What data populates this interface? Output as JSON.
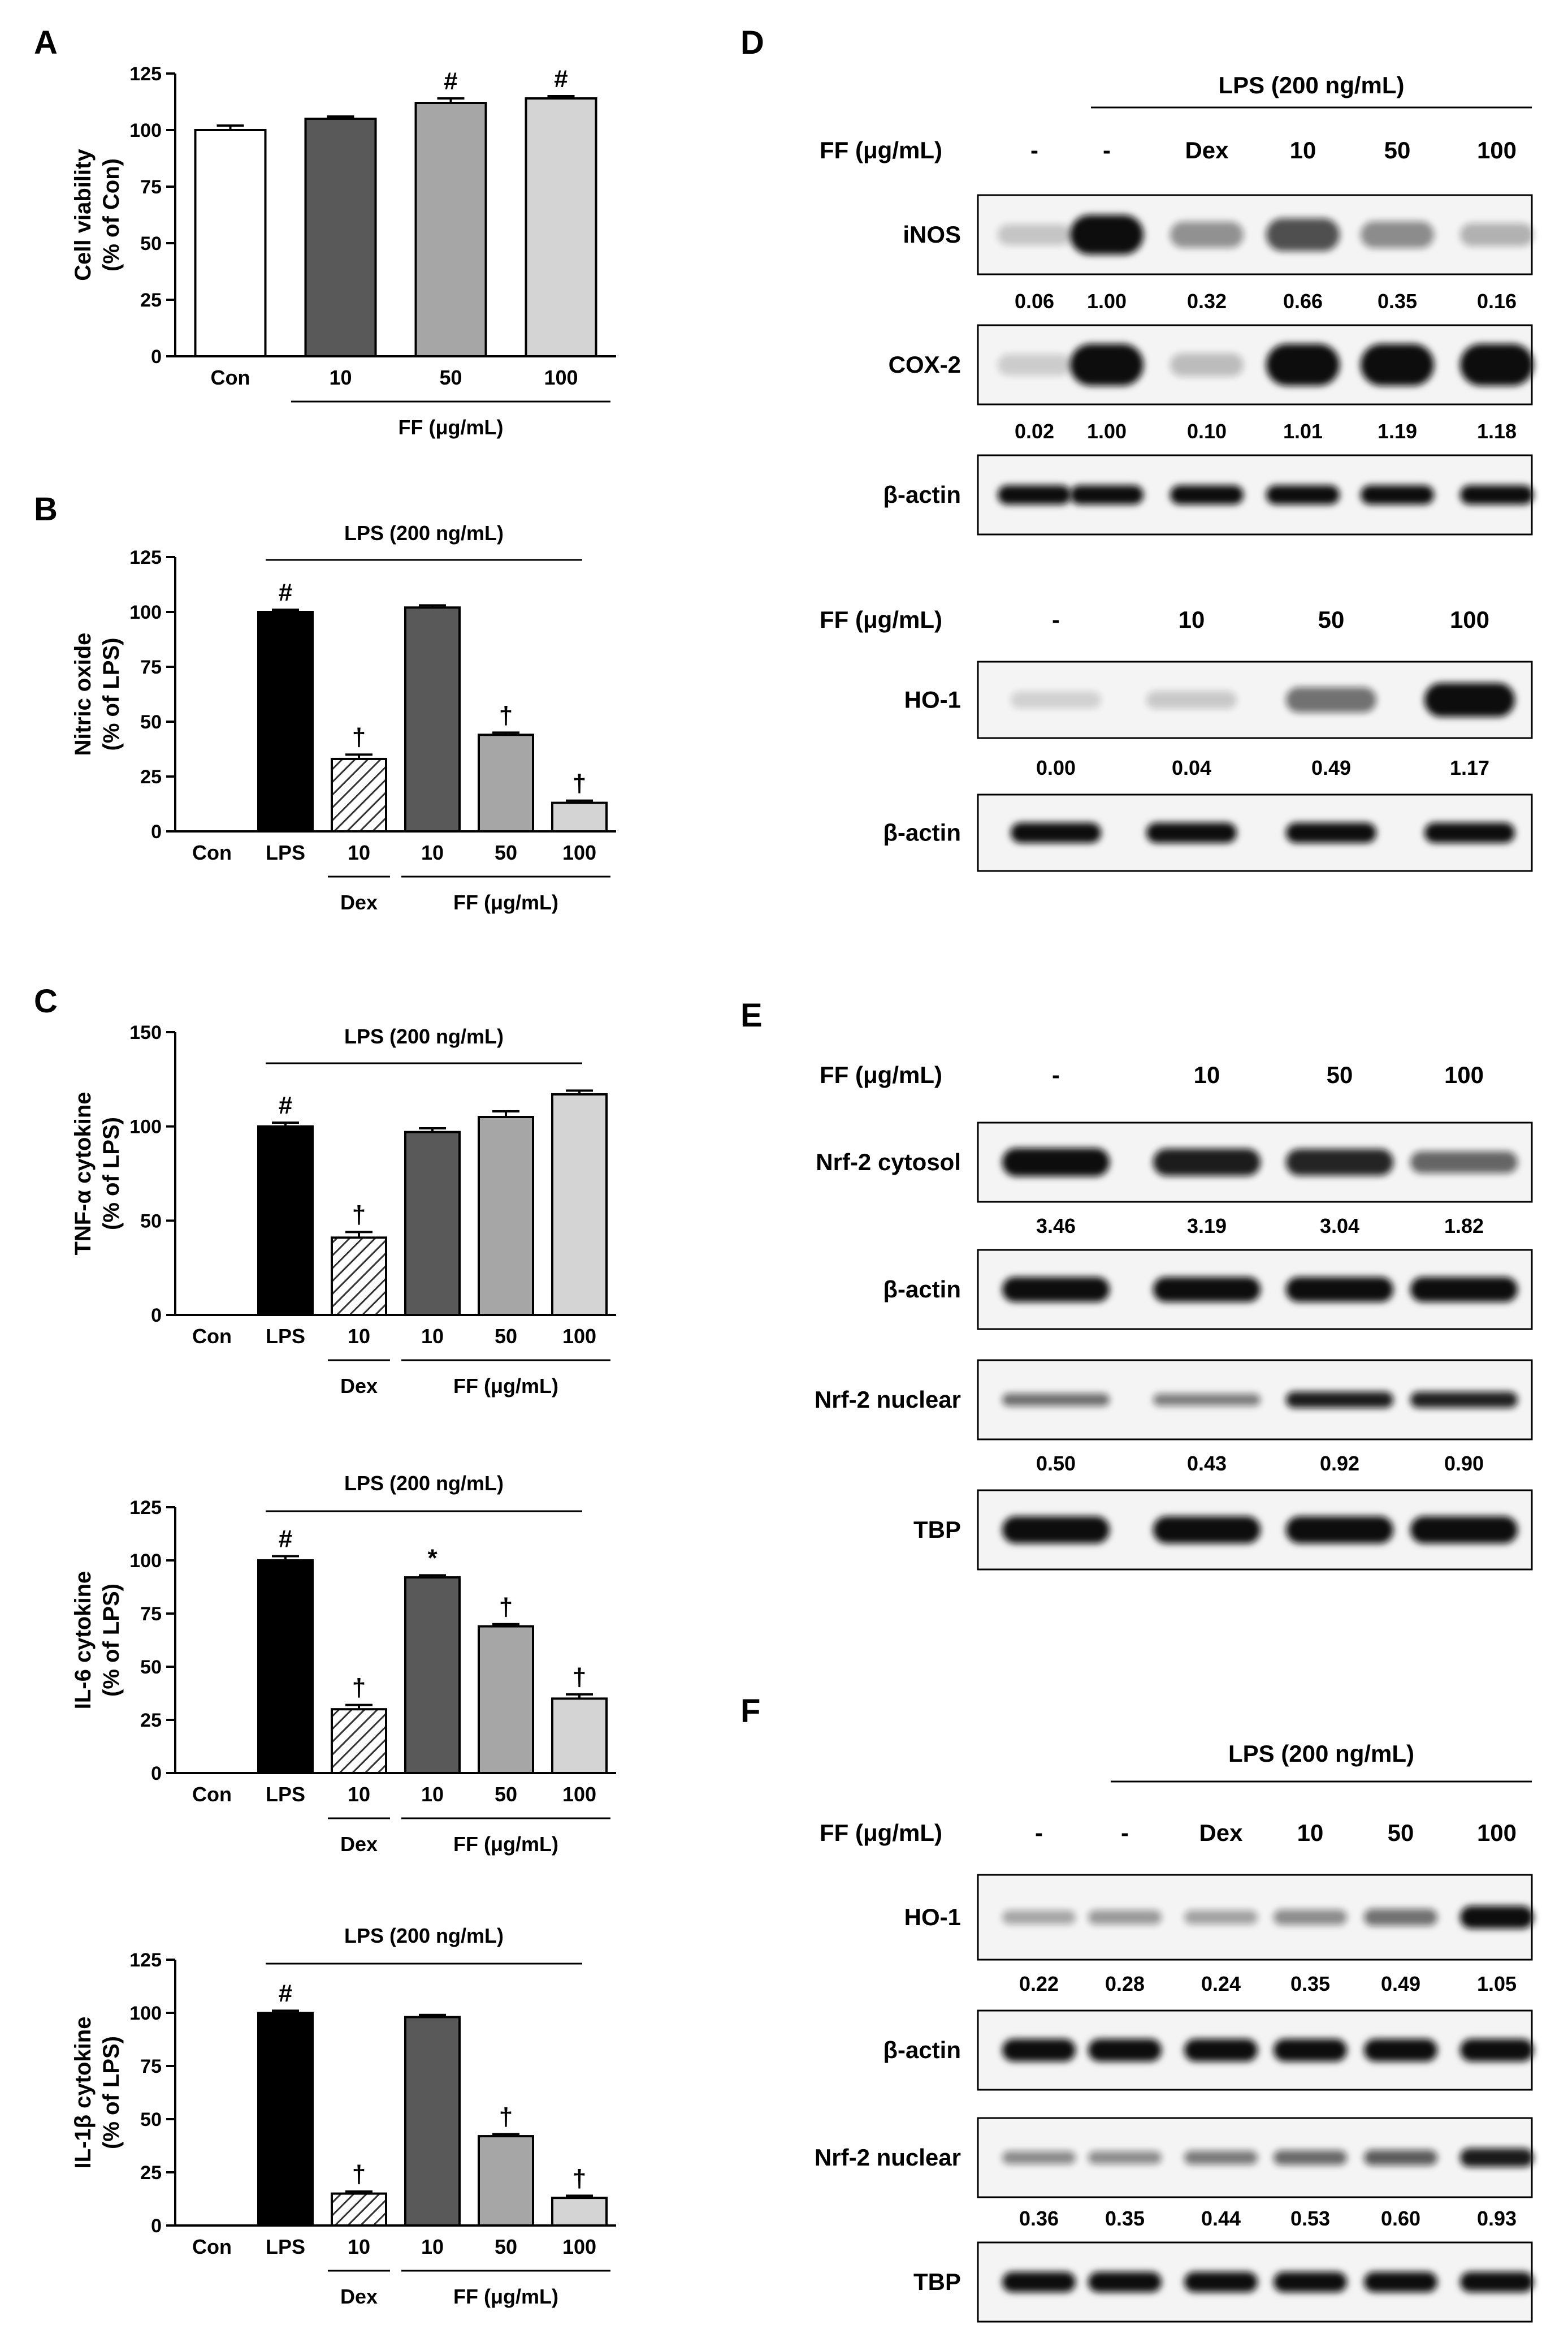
{
  "panel_labels": {
    "A": "A",
    "B": "B",
    "C": "C",
    "D": "D",
    "E": "E",
    "F": "F"
  },
  "charts": [
    {
      "id": "A",
      "type": "bar",
      "ylabel": [
        "Cell viability",
        "(% of Con)"
      ],
      "yticks": [
        0,
        25,
        50,
        75,
        100,
        125
      ],
      "ylim": [
        0,
        125
      ],
      "categories": [
        "Con",
        "10",
        "50",
        "100"
      ],
      "values": [
        100,
        105,
        112,
        114
      ],
      "errors": [
        2,
        1,
        2,
        1
      ],
      "colors": [
        "#ffffff",
        "#595959",
        "#a6a6a6",
        "#d4d4d4"
      ],
      "hatched": [
        false,
        false,
        false,
        false
      ],
      "marks": [
        "",
        "",
        "#",
        "#"
      ],
      "top_label": "",
      "group_labels": [
        {
          "text": "FF (μg/mL)",
          "from": 1,
          "to": 3
        }
      ]
    },
    {
      "id": "B",
      "type": "bar",
      "ylabel": [
        "Nitric oxide",
        "(% of LPS)"
      ],
      "yticks": [
        0,
        25,
        50,
        75,
        100,
        125
      ],
      "ylim": [
        0,
        125
      ],
      "categories": [
        "Con",
        "LPS",
        "10",
        "10",
        "50",
        "100"
      ],
      "values": [
        0,
        100,
        33,
        102,
        44,
        13
      ],
      "errors": [
        0,
        1,
        2,
        1,
        1,
        1
      ],
      "colors": [
        "#ffffff",
        "#000000",
        "#ffffff",
        "#595959",
        "#a6a6a6",
        "#d4d4d4"
      ],
      "hatched": [
        false,
        false,
        true,
        false,
        false,
        false
      ],
      "marks": [
        "",
        "#",
        "†",
        "",
        "†",
        "†"
      ],
      "top_label": "LPS (200 ng/mL)",
      "group_labels": [
        {
          "text": "Dex",
          "from": 2,
          "to": 2
        },
        {
          "text": "FF (μg/mL)",
          "from": 3,
          "to": 5
        }
      ]
    },
    {
      "id": "C1",
      "type": "bar",
      "ylabel": [
        "TNF-α cytokine",
        "(% of LPS)"
      ],
      "yticks": [
        0,
        50,
        100,
        150
      ],
      "ylim": [
        0,
        150
      ],
      "categories": [
        "Con",
        "LPS",
        "10",
        "10",
        "50",
        "100"
      ],
      "values": [
        0,
        100,
        41,
        97,
        105,
        117
      ],
      "errors": [
        0,
        2,
        3,
        2,
        3,
        2
      ],
      "colors": [
        "#ffffff",
        "#000000",
        "#ffffff",
        "#595959",
        "#a6a6a6",
        "#d4d4d4"
      ],
      "hatched": [
        false,
        false,
        true,
        false,
        false,
        false
      ],
      "marks": [
        "",
        "#",
        "†",
        "",
        "",
        ""
      ],
      "top_label": "LPS (200 ng/mL)",
      "group_labels": [
        {
          "text": "Dex",
          "from": 2,
          "to": 2
        },
        {
          "text": "FF (μg/mL)",
          "from": 3,
          "to": 5
        }
      ]
    },
    {
      "id": "C2",
      "type": "bar",
      "ylabel": [
        "IL-6 cytokine",
        "(% of LPS)"
      ],
      "yticks": [
        0,
        25,
        50,
        75,
        100,
        125
      ],
      "ylim": [
        0,
        125
      ],
      "categories": [
        "Con",
        "LPS",
        "10",
        "10",
        "50",
        "100"
      ],
      "values": [
        0,
        100,
        30,
        92,
        69,
        35
      ],
      "errors": [
        0,
        2,
        2,
        1,
        1,
        2
      ],
      "colors": [
        "#ffffff",
        "#000000",
        "#ffffff",
        "#595959",
        "#a6a6a6",
        "#d4d4d4"
      ],
      "hatched": [
        false,
        false,
        true,
        false,
        false,
        false
      ],
      "marks": [
        "",
        "#",
        "†",
        "*",
        "†",
        "†"
      ],
      "top_label": "LPS (200 ng/mL)",
      "group_labels": [
        {
          "text": "Dex",
          "from": 2,
          "to": 2
        },
        {
          "text": "FF (μg/mL)",
          "from": 3,
          "to": 5
        }
      ]
    },
    {
      "id": "C3",
      "type": "bar",
      "ylabel": [
        "IL-1β cytokine",
        "(% of LPS)"
      ],
      "yticks": [
        0,
        25,
        50,
        75,
        100,
        125
      ],
      "ylim": [
        0,
        125
      ],
      "categories": [
        "Con",
        "LPS",
        "10",
        "10",
        "50",
        "100"
      ],
      "values": [
        0,
        100,
        15,
        98,
        42,
        13
      ],
      "errors": [
        0,
        1,
        1,
        1,
        1,
        1
      ],
      "colors": [
        "#ffffff",
        "#000000",
        "#ffffff",
        "#595959",
        "#a6a6a6",
        "#d4d4d4"
      ],
      "hatched": [
        false,
        false,
        true,
        false,
        false,
        false
      ],
      "marks": [
        "",
        "#",
        "†",
        "",
        "†",
        "†"
      ],
      "top_label": "LPS (200 ng/mL)",
      "group_labels": [
        {
          "text": "Dex",
          "from": 2,
          "to": 2
        },
        {
          "text": "FF (μg/mL)",
          "from": 3,
          "to": 5
        }
      ]
    }
  ],
  "blots": {
    "D1": {
      "top_label": "LPS (200 ng/mL)",
      "ff_label": "FF (μg/mL)",
      "lanes": [
        "-",
        "-",
        "Dex",
        "10",
        "50",
        "100"
      ],
      "rows": [
        {
          "name": "iNOS",
          "intensities": [
            0.06,
            1.0,
            0.32,
            0.66,
            0.35,
            0.16
          ],
          "values": [
            "0.06",
            "1.00",
            "0.32",
            "0.66",
            "0.35",
            "0.16"
          ]
        },
        {
          "name": "COX-2",
          "intensities": [
            0.02,
            1.0,
            0.1,
            1.01,
            1.19,
            1.18
          ],
          "values": [
            "0.02",
            "1.00",
            "0.10",
            "1.01",
            "1.19",
            "1.18"
          ]
        },
        {
          "name": "β-actin",
          "intensities": [
            1,
            1,
            1,
            1,
            1,
            1
          ],
          "values": []
        }
      ]
    },
    "D2": {
      "ff_label": "FF (μg/mL)",
      "lanes": [
        "-",
        "10",
        "50",
        "100"
      ],
      "rows": [
        {
          "name": "HO-1",
          "intensities": [
            0.0,
            0.04,
            0.49,
            1.17
          ],
          "values": [
            "0.00",
            "0.04",
            "0.49",
            "1.17"
          ]
        },
        {
          "name": "β-actin",
          "intensities": [
            1,
            1,
            1,
            1
          ],
          "values": []
        }
      ]
    },
    "E": {
      "ff_label": "FF (μg/mL)",
      "lanes": [
        "-",
        "10",
        "50",
        "100"
      ],
      "rows": [
        {
          "name": "Nrf-2 cytosol",
          "intensities": [
            1.0,
            0.92,
            0.88,
            0.55
          ],
          "values": [
            "3.46",
            "3.19",
            "3.04",
            "1.82"
          ]
        },
        {
          "name": "β-actin",
          "intensities": [
            1,
            1,
            1,
            1
          ],
          "values": []
        },
        {
          "name": "Nrf-2 nuclear",
          "intensities": [
            0.5,
            0.43,
            0.92,
            0.9
          ],
          "values": [
            "0.50",
            "0.43",
            "0.92",
            "0.90"
          ]
        },
        {
          "name": "TBP",
          "intensities": [
            1,
            1,
            1,
            1
          ],
          "values": []
        }
      ]
    },
    "F": {
      "top_label": "LPS (200 ng/mL)",
      "ff_label": "FF (μg/mL)",
      "lanes": [
        "-",
        "-",
        "Dex",
        "10",
        "50",
        "100"
      ],
      "rows": [
        {
          "name": "HO-1",
          "intensities": [
            0.22,
            0.28,
            0.24,
            0.35,
            0.49,
            1.05
          ],
          "values": [
            "0.22",
            "0.28",
            "0.24",
            "0.35",
            "0.49",
            "1.05"
          ]
        },
        {
          "name": "β-actin",
          "intensities": [
            1,
            1,
            1,
            1,
            1,
            1
          ],
          "values": []
        },
        {
          "name": "Nrf-2 nuclear",
          "intensities": [
            0.36,
            0.35,
            0.44,
            0.53,
            0.6,
            0.93
          ],
          "values": [
            "0.36",
            "0.35",
            "0.44",
            "0.53",
            "0.60",
            "0.93"
          ]
        },
        {
          "name": "TBP",
          "intensities": [
            1,
            1,
            1,
            1,
            1,
            1
          ],
          "values": []
        }
      ]
    }
  }
}
